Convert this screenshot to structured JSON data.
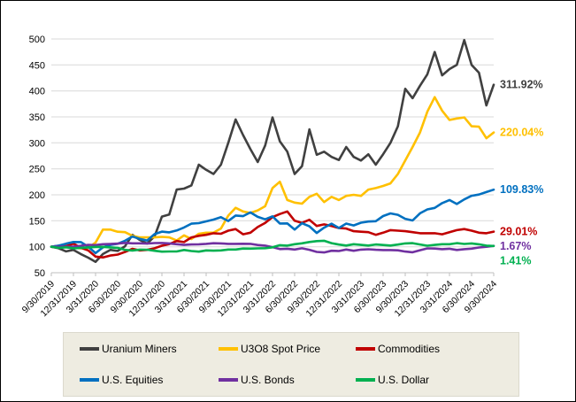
{
  "chart_data": {
    "type": "line",
    "title": "",
    "grid": true,
    "y_axis": {
      "min": 50,
      "max": 500,
      "step": 50
    },
    "x_axis": {
      "frequency": "monthly",
      "tick_labels": [
        "9/30/2019",
        "12/31/2019",
        "3/31/2020",
        "6/30/2020",
        "9/30/2020",
        "12/31/2020",
        "3/31/2021",
        "6/30/2021",
        "9/30/2021",
        "12/31/2021",
        "3/31/2022",
        "6/30/2022",
        "9/30/2022",
        "12/31/2022",
        "3/31/2023",
        "6/30/2023",
        "9/30/2023",
        "12/31/2023",
        "3/31/2024",
        "6/30/2024",
        "9/30/2024"
      ]
    },
    "series": [
      {
        "name": "Uranium Miners",
        "color": "#404040",
        "end_label": "311.92%",
        "values": [
          100,
          97,
          91,
          94,
          86,
          79,
          71,
          86,
          94,
          92,
          101,
          123,
          113,
          106,
          120,
          158,
          162,
          210,
          212,
          218,
          258,
          248,
          240,
          258,
          300,
          345,
          315,
          288,
          263,
          295,
          349,
          303,
          283,
          240,
          255,
          326,
          277,
          283,
          273,
          267,
          292,
          273,
          266,
          278,
          258,
          278,
          300,
          332,
          404,
          386,
          410,
          432,
          475,
          430,
          442,
          450,
          498,
          450,
          435,
          372,
          411.92
        ]
      },
      {
        "name": "U3O8 Spot Price",
        "color": "#FFC000",
        "end_label": "220.04%",
        "values": [
          100,
          99,
          102,
          98,
          97,
          98,
          108,
          133,
          133,
          129,
          128,
          121,
          118,
          118,
          118,
          119,
          118,
          112,
          122,
          115,
          125,
          127,
          127,
          135,
          160,
          175,
          168,
          165,
          170,
          178,
          213,
          225,
          190,
          185,
          183,
          196,
          202,
          186,
          196,
          190,
          198,
          200,
          198,
          210,
          213,
          217,
          222,
          240,
          266,
          292,
          320,
          360,
          388,
          362,
          344,
          347,
          349,
          332,
          331,
          309,
          320.04
        ]
      },
      {
        "name": "Commodities",
        "color": "#C00000",
        "end_label": "29.01%",
        "values": [
          100,
          102,
          101,
          106,
          98,
          93,
          81,
          79.5,
          83,
          85,
          90,
          96,
          93,
          94,
          97,
          102,
          105,
          111,
          109,
          118,
          121,
          123,
          126,
          125,
          131,
          134,
          124,
          127,
          138,
          146,
          157,
          163,
          168,
          150,
          146,
          152,
          140,
          143,
          140,
          136,
          135,
          130,
          129,
          128,
          123,
          127,
          132,
          131,
          130,
          128,
          126,
          126,
          126,
          124,
          128,
          132,
          134,
          131,
          127,
          126,
          129.01
        ]
      },
      {
        "name": "U.S. Equities",
        "color": "#0070C0",
        "end_label": "109.83%",
        "values": [
          100,
          102.2,
          105.9,
          109.1,
          109,
          100.1,
          87.7,
          98.9,
          103.6,
          105.7,
          111.6,
          119.7,
          115.1,
          112.1,
          124.3,
          129.1,
          127.8,
          131.3,
          137.1,
          144.4,
          145.4,
          148.8,
          152.3,
          156.9,
          149.6,
          160.1,
          159,
          166.1,
          157.5,
          152.8,
          158.5,
          144.7,
          144.9,
          133,
          145.2,
          139.3,
          126.5,
          136.7,
          144.4,
          136.1,
          144.6,
          141.1,
          146.3,
          148.6,
          149.2,
          159.1,
          164.2,
          161.5,
          153.8,
          150.6,
          164.3,
          171.8,
          174.7,
          184,
          189.9,
          182.2,
          191.2,
          198.1,
          200.5,
          205.3,
          209.83
        ]
      },
      {
        "name": "U.S. Bonds",
        "color": "#7030A0",
        "end_label": "1.67%",
        "values": [
          100,
          100.3,
          100.2,
          100.2,
          101.9,
          103.7,
          103.1,
          104.9,
          105.4,
          106,
          107.5,
          106.6,
          106.6,
          106.1,
          107.1,
          107.2,
          106.4,
          104.9,
          103.6,
          104.4,
          104.7,
          105.5,
          106.7,
          106.5,
          105.6,
          105.5,
          105.8,
          105.5,
          103.3,
          102.1,
          99.3,
          95.5,
          96.2,
          94.7,
          97,
          94.2,
          90.1,
          89,
          92.3,
          91.8,
          94.6,
          92.2,
          94.5,
          95.1,
          94.1,
          93.7,
          93.7,
          93.1,
          90.7,
          89.3,
          93.3,
          96.9,
          96.6,
          95.3,
          96.2,
          93.8,
          95.4,
          96.3,
          98.5,
          99.9,
          101.67
        ]
      },
      {
        "name": "U.S. Dollar",
        "color": "#00B050",
        "end_label": "1.41%",
        "values": [
          100,
          97.9,
          98.9,
          97,
          97.9,
          98.8,
          99.6,
          99.7,
          98.7,
          97.9,
          93.9,
          92.8,
          94.5,
          94.4,
          92.2,
          90.5,
          90.9,
          90.9,
          93.8,
          91.8,
          90.5,
          92.9,
          92.5,
          92.9,
          94.6,
          94.6,
          96.6,
          96.3,
          96.9,
          97.3,
          98.9,
          103,
          102.2,
          104.9,
          106.6,
          109.2,
          110.9,
          111.5,
          106.9,
          104.2,
          102.4,
          104.9,
          103.5,
          102.4,
          104.4,
          103.4,
          102.3,
          104.2,
          106.5,
          106.9,
          104.3,
          102,
          103.6,
          104.9,
          104.9,
          106.9,
          105.4,
          106.5,
          104.8,
          102.2,
          101.41
        ]
      }
    ],
    "legend": {
      "position": "bottom",
      "rows": [
        [
          "Uranium Miners",
          "U3O8 Spot Price",
          "Commodities"
        ],
        [
          "U.S. Equities",
          "U.S. Bonds",
          "U.S. Dollar"
        ]
      ]
    },
    "colors": {
      "gridline": "#D9D9D9",
      "axis": "#BFBFBF",
      "tick_text": "#000000",
      "legend_background": "#EEECE1"
    }
  }
}
